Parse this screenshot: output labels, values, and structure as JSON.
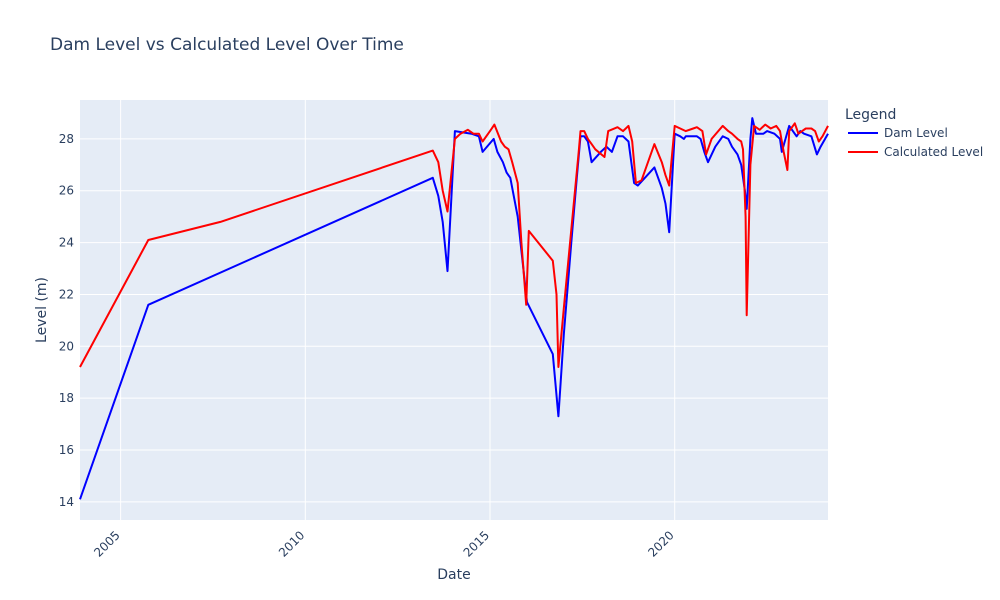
{
  "chart_data": {
    "type": "line",
    "title": "Dam Level vs Calculated Level Over Time",
    "xlabel": "Date",
    "ylabel": "Level (m)",
    "legend_title": "Legend",
    "legend_position": "right",
    "grid": true,
    "xlim": [
      2003.9,
      2024.15
    ],
    "ylim": [
      13.3,
      29.5
    ],
    "x_ticks": [
      2005,
      2010,
      2015,
      2020
    ],
    "y_ticks": [
      14,
      16,
      18,
      20,
      22,
      24,
      26,
      28
    ],
    "colors": {
      "plot_bg": "#e5ecf6",
      "grid": "#ffffff",
      "text": "#2a3f5f"
    },
    "series": [
      {
        "name": "Dam Level",
        "color": "#0000ff",
        "points": [
          [
            2003.9,
            14.1
          ],
          [
            2005.75,
            21.6
          ],
          [
            2013.45,
            26.5
          ],
          [
            2013.6,
            25.8
          ],
          [
            2013.72,
            24.8
          ],
          [
            2013.85,
            22.9
          ],
          [
            2014.05,
            28.3
          ],
          [
            2014.5,
            28.2
          ],
          [
            2014.7,
            28.1
          ],
          [
            2014.8,
            27.5
          ],
          [
            2015.1,
            28.0
          ],
          [
            2015.2,
            27.5
          ],
          [
            2015.35,
            27.1
          ],
          [
            2015.45,
            26.7
          ],
          [
            2015.55,
            26.5
          ],
          [
            2015.75,
            25.0
          ],
          [
            2016.0,
            21.7
          ],
          [
            2016.7,
            19.7
          ],
          [
            2016.85,
            17.3
          ],
          [
            2017.0,
            20.5
          ],
          [
            2017.2,
            24.0
          ],
          [
            2017.35,
            26.5
          ],
          [
            2017.45,
            28.1
          ],
          [
            2017.55,
            28.1
          ],
          [
            2017.65,
            27.9
          ],
          [
            2017.75,
            27.1
          ],
          [
            2018.0,
            27.5
          ],
          [
            2018.15,
            27.7
          ],
          [
            2018.3,
            27.5
          ],
          [
            2018.45,
            28.1
          ],
          [
            2018.6,
            28.1
          ],
          [
            2018.75,
            27.9
          ],
          [
            2018.9,
            26.3
          ],
          [
            2019.0,
            26.2
          ],
          [
            2019.45,
            26.9
          ],
          [
            2019.65,
            26.1
          ],
          [
            2019.75,
            25.5
          ],
          [
            2019.85,
            24.4
          ],
          [
            2020.0,
            28.2
          ],
          [
            2020.15,
            28.1
          ],
          [
            2020.25,
            28.0
          ],
          [
            2020.3,
            28.1
          ],
          [
            2020.5,
            28.1
          ],
          [
            2020.6,
            28.1
          ],
          [
            2020.7,
            28.0
          ],
          [
            2020.8,
            27.5
          ],
          [
            2020.9,
            27.1
          ],
          [
            2021.1,
            27.7
          ],
          [
            2021.3,
            28.1
          ],
          [
            2021.45,
            28.0
          ],
          [
            2021.55,
            27.7
          ],
          [
            2021.7,
            27.4
          ],
          [
            2021.8,
            27.0
          ],
          [
            2021.9,
            26.0
          ],
          [
            2021.95,
            25.3
          ],
          [
            2022.05,
            28.0
          ],
          [
            2022.1,
            28.8
          ],
          [
            2022.2,
            28.2
          ],
          [
            2022.4,
            28.2
          ],
          [
            2022.5,
            28.3
          ],
          [
            2022.7,
            28.2
          ],
          [
            2022.85,
            28.0
          ],
          [
            2022.9,
            27.5
          ],
          [
            2023.0,
            28.0
          ],
          [
            2023.1,
            28.5
          ],
          [
            2023.3,
            28.1
          ],
          [
            2023.4,
            28.3
          ],
          [
            2023.5,
            28.2
          ],
          [
            2023.7,
            28.1
          ],
          [
            2023.85,
            27.4
          ],
          [
            2023.95,
            27.7
          ],
          [
            2024.15,
            28.2
          ]
        ]
      },
      {
        "name": "Calculated Level",
        "color": "#ff0000",
        "points": [
          [
            2003.9,
            19.2
          ],
          [
            2005.75,
            24.1
          ],
          [
            2007.7,
            24.8
          ],
          [
            2013.45,
            27.55
          ],
          [
            2013.6,
            27.1
          ],
          [
            2013.72,
            26.0
          ],
          [
            2013.85,
            25.2
          ],
          [
            2014.05,
            28.0
          ],
          [
            2014.2,
            28.2
          ],
          [
            2014.4,
            28.35
          ],
          [
            2014.55,
            28.2
          ],
          [
            2014.7,
            28.2
          ],
          [
            2014.8,
            27.9
          ],
          [
            2015.0,
            28.3
          ],
          [
            2015.12,
            28.55
          ],
          [
            2015.3,
            27.9
          ],
          [
            2015.4,
            27.7
          ],
          [
            2015.5,
            27.6
          ],
          [
            2015.6,
            27.1
          ],
          [
            2015.75,
            26.3
          ],
          [
            2015.85,
            24.0
          ],
          [
            2015.98,
            21.6
          ],
          [
            2016.05,
            24.45
          ],
          [
            2016.7,
            23.3
          ],
          [
            2016.8,
            22.0
          ],
          [
            2016.85,
            19.2
          ],
          [
            2017.0,
            21.5
          ],
          [
            2017.2,
            24.5
          ],
          [
            2017.4,
            27.5
          ],
          [
            2017.45,
            28.3
          ],
          [
            2017.55,
            28.3
          ],
          [
            2017.65,
            28.0
          ],
          [
            2017.75,
            27.8
          ],
          [
            2017.85,
            27.6
          ],
          [
            2018.1,
            27.3
          ],
          [
            2018.2,
            28.3
          ],
          [
            2018.45,
            28.45
          ],
          [
            2018.6,
            28.3
          ],
          [
            2018.75,
            28.5
          ],
          [
            2018.85,
            27.9
          ],
          [
            2018.95,
            26.3
          ],
          [
            2019.1,
            26.4
          ],
          [
            2019.45,
            27.8
          ],
          [
            2019.65,
            27.1
          ],
          [
            2019.75,
            26.6
          ],
          [
            2019.85,
            26.2
          ],
          [
            2020.0,
            28.5
          ],
          [
            2020.15,
            28.4
          ],
          [
            2020.3,
            28.3
          ],
          [
            2020.5,
            28.4
          ],
          [
            2020.6,
            28.45
          ],
          [
            2020.75,
            28.3
          ],
          [
            2020.85,
            27.4
          ],
          [
            2021.0,
            28.0
          ],
          [
            2021.3,
            28.5
          ],
          [
            2021.45,
            28.3
          ],
          [
            2021.55,
            28.2
          ],
          [
            2021.7,
            28.0
          ],
          [
            2021.8,
            27.9
          ],
          [
            2021.85,
            27.6
          ],
          [
            2021.92,
            25.0
          ],
          [
            2021.95,
            21.2
          ],
          [
            2022.05,
            27.0
          ],
          [
            2022.15,
            28.5
          ],
          [
            2022.3,
            28.35
          ],
          [
            2022.45,
            28.55
          ],
          [
            2022.6,
            28.4
          ],
          [
            2022.75,
            28.5
          ],
          [
            2022.85,
            28.3
          ],
          [
            2022.95,
            27.5
          ],
          [
            2023.05,
            26.8
          ],
          [
            2023.1,
            28.3
          ],
          [
            2023.25,
            28.6
          ],
          [
            2023.35,
            28.2
          ],
          [
            2023.45,
            28.3
          ],
          [
            2023.55,
            28.4
          ],
          [
            2023.7,
            28.4
          ],
          [
            2023.8,
            28.3
          ],
          [
            2023.9,
            27.9
          ],
          [
            2024.0,
            28.1
          ],
          [
            2024.15,
            28.5
          ]
        ]
      }
    ]
  }
}
